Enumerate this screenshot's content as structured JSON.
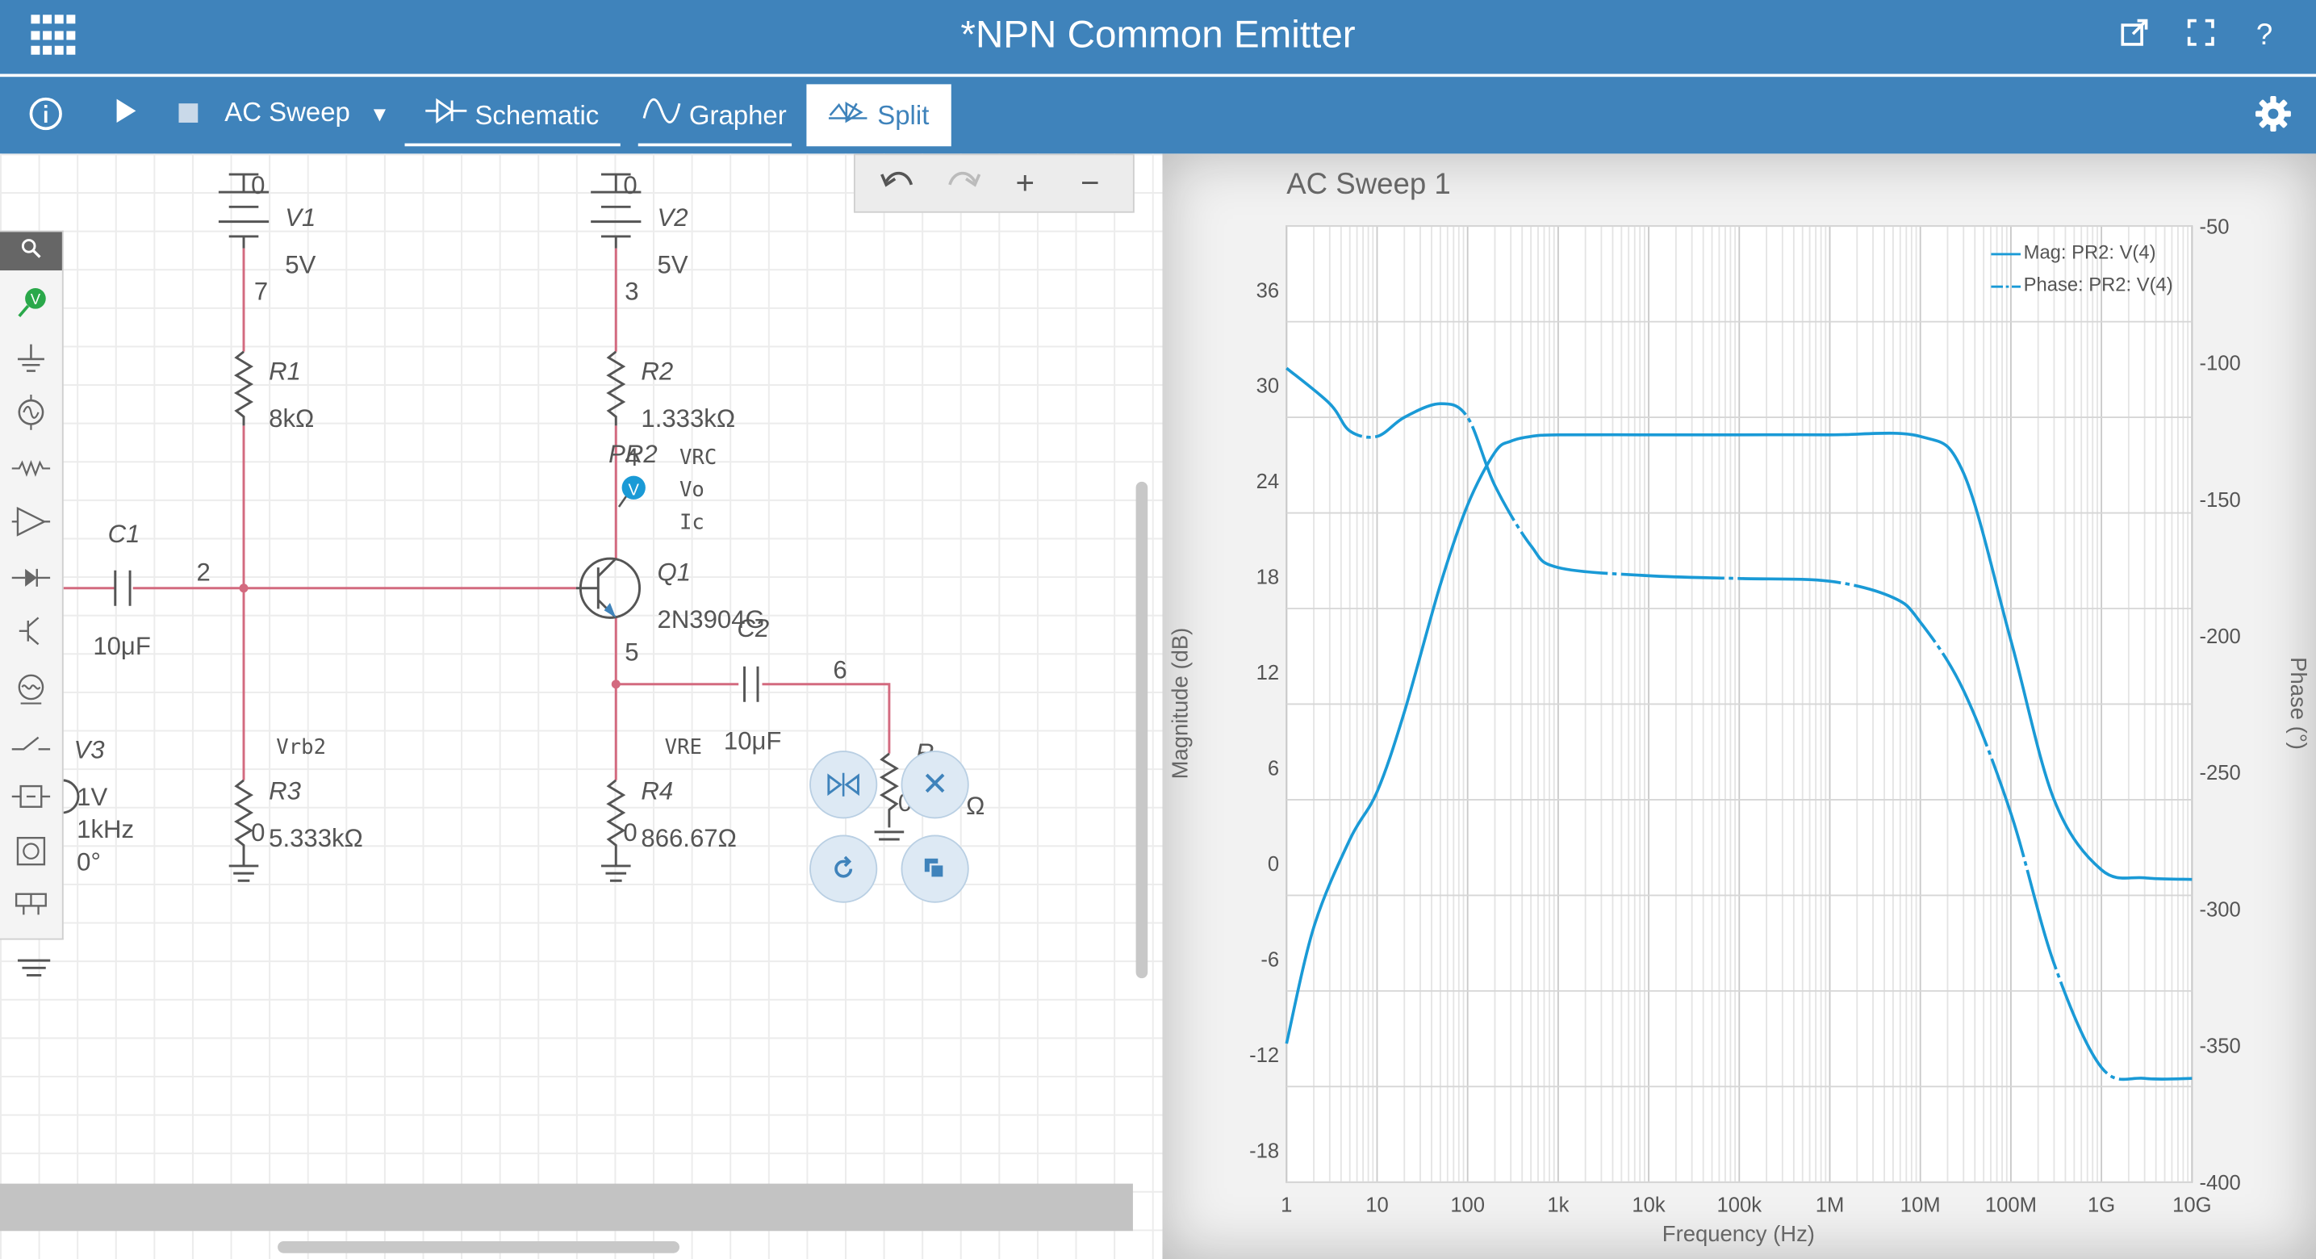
{
  "app": {
    "title": "*NPN Common Emitter",
    "title_icons": [
      "grid-menu-icon",
      "popout-icon",
      "fullscreen-icon",
      "help-icon"
    ]
  },
  "toolbar": {
    "info_icon": "info-icon",
    "run_icon": "play-icon",
    "stop_icon": "stop-icon",
    "analysis": "AC Sweep",
    "tabs": [
      {
        "label": "Schematic",
        "icon": "schematic-icon"
      },
      {
        "label": "Grapher",
        "icon": "sine-wave-icon"
      },
      {
        "label": "Split",
        "icon": "split-icon",
        "selected": true
      }
    ],
    "settings_icon": "gear-icon",
    "help_label": "?"
  },
  "edit_bar": {
    "undo": "undo-icon",
    "redo": "redo-icon",
    "zoom_in": "+",
    "zoom_out": "−"
  },
  "schematic": {
    "v1": {
      "ground": "0",
      "name": "V1",
      "value": "5V",
      "node": "7"
    },
    "v2": {
      "ground": "0",
      "name": "V2",
      "value": "5V",
      "node": "3"
    },
    "r1": {
      "name": "R1",
      "value": "8kΩ"
    },
    "r2": {
      "name": "R2",
      "value": "1.333kΩ"
    },
    "probe": {
      "name": "PR2",
      "node": "4",
      "badge": "V",
      "readouts": [
        "VRC",
        "Vo",
        "Ic"
      ]
    },
    "c1": {
      "name": "C1",
      "value": "10μF"
    },
    "node2": "2",
    "q1": {
      "name": "Q1",
      "model": "2N3904G"
    },
    "c2": {
      "name": "C2",
      "value": "10μF"
    },
    "node5": "5",
    "node6": "6",
    "vrb2": "Vrb2",
    "vre": "VRE",
    "r3": {
      "name": "R3",
      "value": "5.333kΩ",
      "node": "0"
    },
    "r4": {
      "name": "R4",
      "value": "866.67Ω",
      "node": "0"
    },
    "v3": {
      "name": "V3",
      "amp": "1V",
      "freq": "1kHz",
      "phase": "0°"
    },
    "rl_partial": {
      "name_fragment": "R",
      "value_fragment": "Ω",
      "node_fragment": "0"
    }
  },
  "context_actions": [
    "flip-icon",
    "delete-icon",
    "rotate-icon",
    "duplicate-icon"
  ],
  "palette_icons": [
    "search-icon",
    "voltage-probe-icon",
    "ground-icon",
    "ac-source-icon",
    "resistor-icon",
    "opamp-icon",
    "diode-icon",
    "transistor-icon",
    "lamp-icon",
    "switch-icon",
    "meter-icon",
    "oscillator-icon",
    "connector-icon",
    "earth-icon"
  ],
  "grapher": {
    "title": "AC Sweep 1",
    "xlabel": "Frequency (Hz)",
    "ylabel_left": "Magnitude (dB)",
    "ylabel_right": "Phase (°)",
    "x_ticks": [
      "1",
      "10",
      "100",
      "1k",
      "10k",
      "100k",
      "1M",
      "10M",
      "100M",
      "1G",
      "10G"
    ],
    "y_left_ticks": [
      "36",
      "30",
      "24",
      "18",
      "12",
      "6",
      "0",
      "-6",
      "-12",
      "-18"
    ],
    "y_right_ticks": [
      "-50",
      "-100",
      "-150",
      "-200",
      "-250",
      "-300",
      "-350",
      "-400"
    ],
    "legend": [
      "Mag: PR2: V(4)",
      "Phase: PR2: V(4)"
    ],
    "color": "#1a9ad6"
  },
  "chart_data": {
    "type": "line",
    "title": "AC Sweep 1",
    "xlabel": "Frequency (Hz)",
    "ylabel": "Magnitude (dB)",
    "y2label": "Phase (°)",
    "x_scale": "log",
    "xlim": [
      1,
      10000000000
    ],
    "ylim": [
      -20,
      40
    ],
    "y2lim": [
      -400,
      -50
    ],
    "grid": true,
    "legend_position": "top-right",
    "series": [
      {
        "name": "Mag: PR2: V(4)",
        "axis": "left",
        "x": [
          1,
          2,
          5,
          10,
          20,
          50,
          100,
          200,
          300,
          500,
          1000,
          10000,
          100000,
          1000000,
          10000000,
          30000000,
          100000000,
          300000000,
          1000000000,
          3000000000,
          10000000000
        ],
        "y": [
          -11.3,
          -4,
          1.5,
          4.5,
          9.5,
          17.5,
          22.5,
          25.8,
          26.5,
          26.8,
          26.9,
          26.9,
          26.9,
          26.9,
          26.8,
          24.5,
          14,
          4,
          -0.4,
          -0.9,
          -1.0
        ]
      },
      {
        "name": "Phase: PR2: V(4)",
        "axis": "right",
        "x": [
          1,
          3,
          5,
          10,
          20,
          50,
          100,
          200,
          500,
          1000,
          10000,
          100000,
          1000000,
          5000000,
          10000000,
          30000000,
          100000000,
          300000000,
          1000000000,
          3000000000,
          10000000000
        ],
        "y": [
          -102,
          -115,
          -125,
          -127,
          -120,
          -115,
          -120,
          -145,
          -167,
          -175,
          -178,
          -179,
          -180,
          -186,
          -195,
          -220,
          -265,
          -320,
          -358,
          -362,
          -362
        ]
      }
    ]
  }
}
